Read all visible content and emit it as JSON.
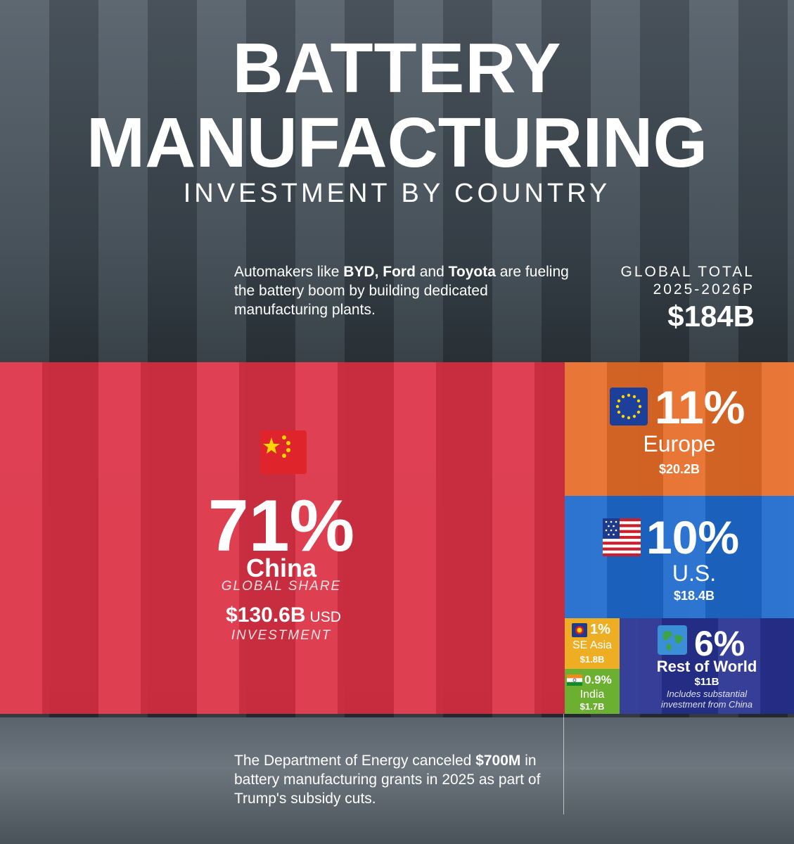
{
  "header": {
    "title_line1": "BATTERY",
    "title_line2": "MANUFACTURING",
    "subtitle": "INVESTMENT BY COUNTRY"
  },
  "intro": {
    "pre": "Automakers like ",
    "b1": "BYD, Ford",
    "mid1": " and ",
    "b2": "Toyota",
    "post": " are fueling the battery boom by building dedicated manufacturing plants."
  },
  "global_total": {
    "label_line1": "GLOBAL TOTAL",
    "label_line2": "2025-2026P",
    "value": "$184B"
  },
  "chart_data": {
    "type": "treemap",
    "title": "BATTERY MANUFACTURING",
    "subtitle": "INVESTMENT BY COUNTRY",
    "total_label": "GLOBAL TOTAL 2025-2026P",
    "total_usd_billion": 184,
    "segments": [
      {
        "name": "China",
        "share_pct": 71,
        "share_label": "71%",
        "investment_usd_billion": 130.6,
        "amount_label": "$130.6B",
        "unit_label": "USD",
        "share_caption": "GLOBAL SHARE",
        "investment_caption": "INVESTMENT",
        "color": "#e93246",
        "flag": "china-flag"
      },
      {
        "name": "Europe",
        "share_pct": 11,
        "share_label": "11%",
        "investment_usd_billion": 20.2,
        "amount_label": "$20.2B",
        "color": "#f07028",
        "flag": "eu-flag"
      },
      {
        "name": "U.S.",
        "share_pct": 10,
        "share_label": "10%",
        "investment_usd_billion": 18.4,
        "amount_label": "$18.4B",
        "color": "#1e6ed7",
        "flag": "us-flag"
      },
      {
        "name": "Rest of World",
        "share_pct": 6,
        "share_label": "6%",
        "investment_usd_billion": 11,
        "amount_label": "$11B",
        "note_line1": "Includes substantial",
        "note_line2": "investment from China",
        "color": "#283096",
        "flag": "globe-icon"
      },
      {
        "name": "SE Asia",
        "share_pct": 1,
        "share_label": "1%",
        "investment_usd_billion": 1.8,
        "amount_label": "$1.8B",
        "color": "#f5b223",
        "flag": "asean-flag"
      },
      {
        "name": "India",
        "share_pct": 0.9,
        "share_label": "0.9%",
        "investment_usd_billion": 1.7,
        "amount_label": "$1.7B",
        "color": "#6eb432",
        "flag": "india-flag"
      }
    ]
  },
  "footnote": {
    "pre": "The Department of Energy canceled ",
    "b": "$700M",
    "post": " in battery manufacturing grants in 2025 as part of Trump's subsidy cuts."
  }
}
